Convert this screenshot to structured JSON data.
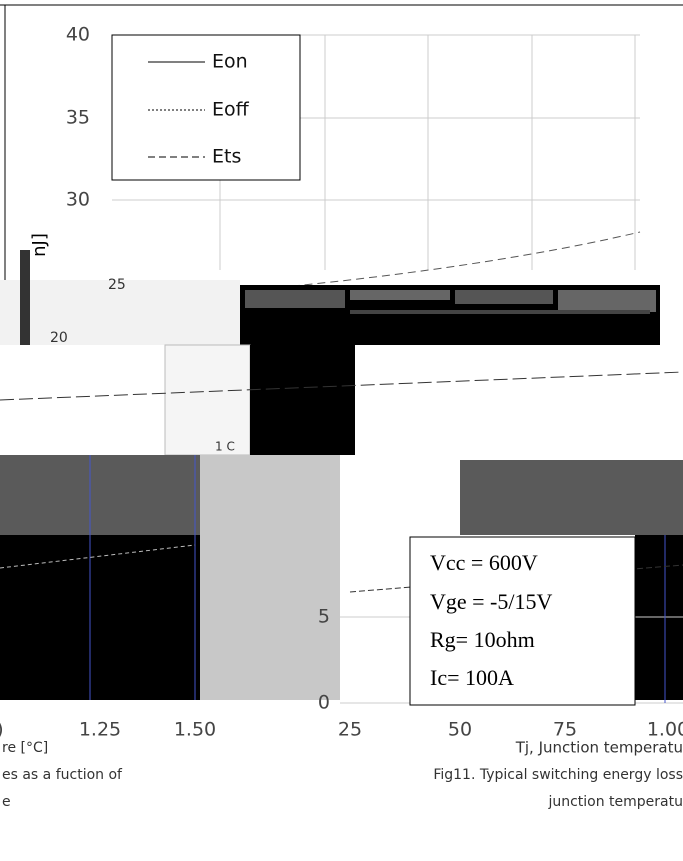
{
  "top_chart": {
    "yticks": [
      "40",
      "35",
      "30"
    ],
    "y_label": "nJ]",
    "legend": [
      "Eon",
      "Eoff",
      "Ets"
    ]
  },
  "fragments": [
    "25",
    "20",
    "1 C"
  ],
  "bottom_left": {
    "xticks": [
      ")",
      "1.25",
      "1.50"
    ],
    "caption": [
      "re [°C]",
      "es as a fuction of",
      "e"
    ]
  },
  "bottom_right": {
    "yticks": [
      "5",
      "0"
    ],
    "xticks": [
      "25",
      "50",
      "75",
      "1.00"
    ],
    "conditions": [
      "Vcc = 600V",
      "Vge = -5/15V",
      "Rg= 10ohm",
      "Ic= 100A"
    ],
    "x_label": "Tj, Junction temperatu",
    "caption": [
      "Fig11. Typical switching energy loss",
      "junction temperatu"
    ]
  }
}
